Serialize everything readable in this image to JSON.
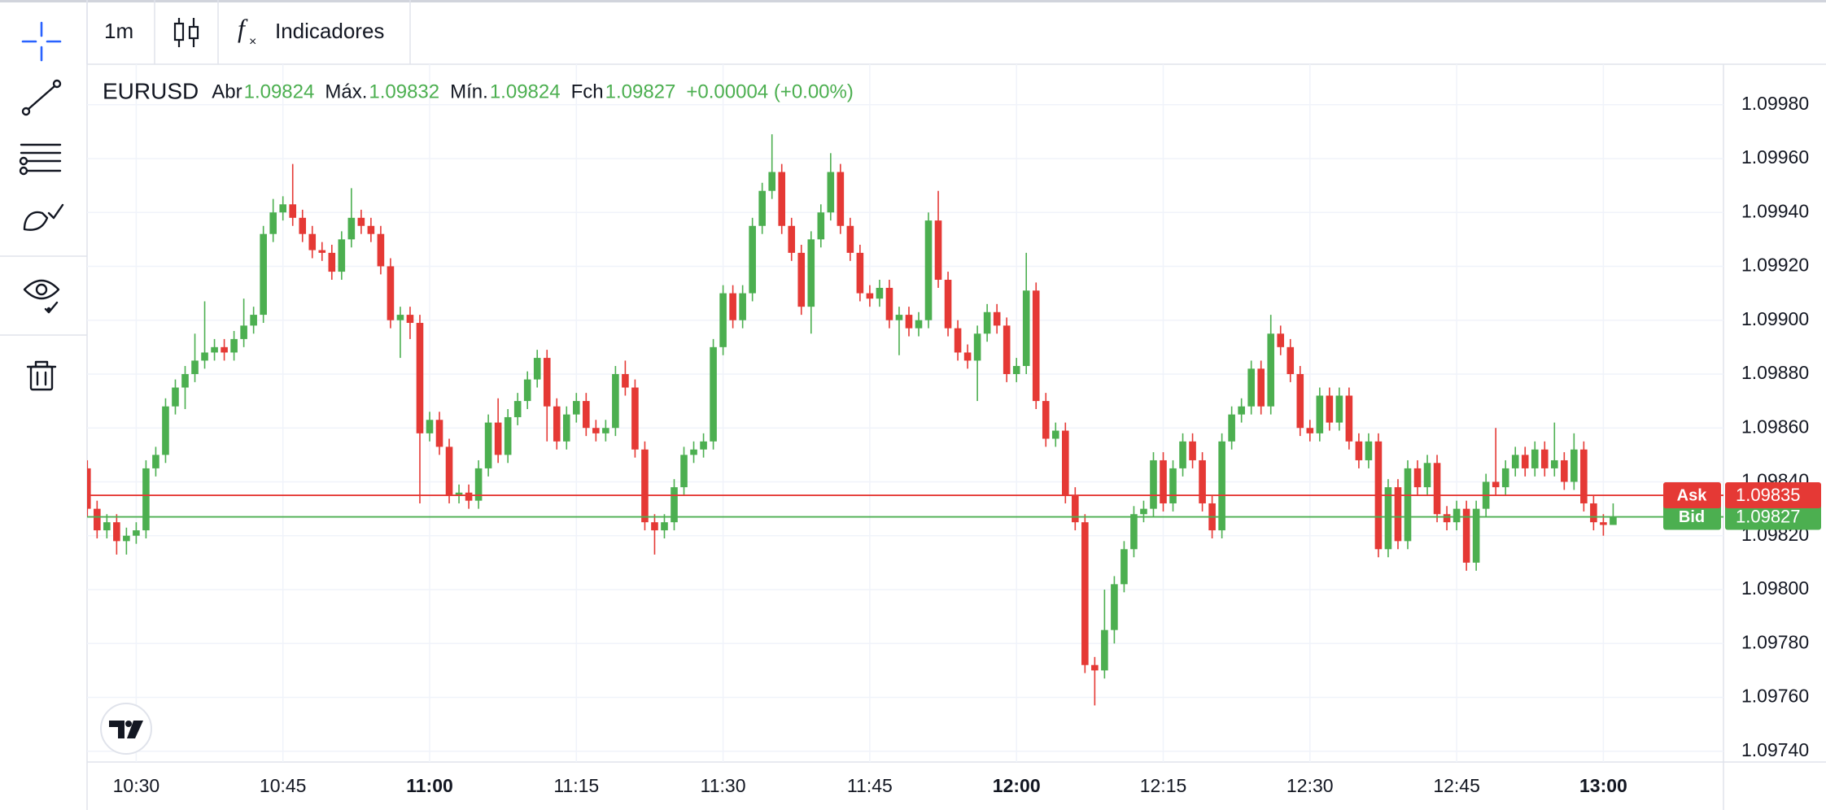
{
  "toolbar": {
    "interval": "1m",
    "indicators": "Indicadores"
  },
  "chart_data": {
    "type": "candlestick",
    "symbol": "EURUSD",
    "ohlc_labels": [
      "Abr",
      "Máx.",
      "Mín.",
      "Fch"
    ],
    "change": "+0.00004 (+0.00%)",
    "up_color": "#4caf50",
    "down_color": "#e53935",
    "grid": true,
    "categories": [
      "10:25",
      "10:26",
      "10:27",
      "10:28",
      "10:29",
      "10:30",
      "10:31",
      "10:32",
      "10:33",
      "10:34",
      "10:35",
      "10:36",
      "10:37",
      "10:38",
      "10:39",
      "10:40",
      "10:41",
      "10:42",
      "10:43",
      "10:44",
      "10:45",
      "10:46",
      "10:47",
      "10:48",
      "10:49",
      "10:50",
      "10:51",
      "10:52",
      "10:53",
      "10:54",
      "10:55",
      "10:56",
      "10:57",
      "10:58",
      "10:59",
      "11:00",
      "11:01",
      "11:02",
      "11:03",
      "11:04",
      "11:05",
      "11:06",
      "11:07",
      "11:08",
      "11:09",
      "11:10",
      "11:11",
      "11:12",
      "11:13",
      "11:14",
      "11:15",
      "11:16",
      "11:17",
      "11:18",
      "11:19",
      "11:20",
      "11:21",
      "11:22",
      "11:23",
      "11:24",
      "11:25",
      "11:26",
      "11:27",
      "11:28",
      "11:29",
      "11:30",
      "11:31",
      "11:32",
      "11:33",
      "11:34",
      "11:35",
      "11:36",
      "11:37",
      "11:38",
      "11:39",
      "11:40",
      "11:41",
      "11:42",
      "11:43",
      "11:44",
      "11:45",
      "11:46",
      "11:47",
      "11:48",
      "11:49",
      "11:50",
      "11:51",
      "11:52",
      "11:53",
      "11:54",
      "11:55",
      "11:56",
      "11:57",
      "11:58",
      "11:59",
      "12:00",
      "12:01",
      "12:02",
      "12:03",
      "12:04",
      "12:05",
      "12:06",
      "12:07",
      "12:08",
      "12:09",
      "12:10",
      "12:11",
      "12:12",
      "12:13",
      "12:14",
      "12:15",
      "12:16",
      "12:17",
      "12:18",
      "12:19",
      "12:20",
      "12:21",
      "12:22",
      "12:23",
      "12:24",
      "12:25",
      "12:26",
      "12:27",
      "12:28",
      "12:29",
      "12:30",
      "12:31",
      "12:32",
      "12:33",
      "12:34",
      "12:35",
      "12:36",
      "12:37",
      "12:38",
      "12:39",
      "12:40",
      "12:41",
      "12:42",
      "12:43",
      "12:44",
      "12:45",
      "12:46",
      "12:47",
      "12:48",
      "12:49",
      "12:50",
      "12:51",
      "12:52",
      "12:53",
      "12:54",
      "12:55",
      "12:56",
      "12:57",
      "12:58",
      "12:59",
      "13:00",
      "13:01"
    ],
    "open": [
      1.09845,
      1.0983,
      1.09822,
      1.09825,
      1.09818,
      1.0982,
      1.09822,
      1.09845,
      1.0985,
      1.09868,
      1.09875,
      1.0988,
      1.09885,
      1.09888,
      1.0989,
      1.09888,
      1.09893,
      1.09898,
      1.09902,
      1.09932,
      1.0994,
      1.09943,
      1.09938,
      1.09932,
      1.09926,
      1.09925,
      1.09918,
      1.0993,
      1.09938,
      1.09935,
      1.09932,
      1.0992,
      1.099,
      1.09902,
      1.09899,
      1.09858,
      1.09863,
      1.09853,
      1.09835,
      1.09836,
      1.09833,
      1.09845,
      1.09862,
      1.0985,
      1.09864,
      1.0987,
      1.09878,
      1.09886,
      1.09868,
      1.09855,
      1.09865,
      1.0987,
      1.0986,
      1.09858,
      1.0986,
      1.0988,
      1.09875,
      1.09852,
      1.09825,
      1.09822,
      1.09825,
      1.09838,
      1.0985,
      1.09852,
      1.09855,
      1.0989,
      1.0991,
      1.099,
      1.0991,
      1.09935,
      1.09948,
      1.09955,
      1.09935,
      1.09925,
      1.09905,
      1.0993,
      1.0994,
      1.09955,
      1.09935,
      1.09925,
      1.0991,
      1.09908,
      1.09912,
      1.099,
      1.09902,
      1.09897,
      1.099,
      1.09937,
      1.09915,
      1.09897,
      1.09888,
      1.09885,
      1.09895,
      1.09903,
      1.09898,
      1.0988,
      1.09883,
      1.09911,
      1.0987,
      1.09856,
      1.09859,
      1.09835,
      1.09825,
      1.09772,
      1.0977,
      1.09785,
      1.09802,
      1.09815,
      1.09828,
      1.0983,
      1.09848,
      1.09832,
      1.09845,
      1.09855,
      1.09848,
      1.09832,
      1.09822,
      1.09855,
      1.09865,
      1.09868,
      1.09882,
      1.09868,
      1.09895,
      1.0989,
      1.0988,
      1.0986,
      1.09858,
      1.09872,
      1.09862,
      1.09872,
      1.09855,
      1.09848,
      1.09855,
      1.09815,
      1.09838,
      1.09818,
      1.09845,
      1.09838,
      1.09847,
      1.09828,
      1.09825,
      1.0983,
      1.0981,
      1.0983,
      1.0984,
      1.09838,
      1.09845,
      1.0985,
      1.09845,
      1.09852,
      1.09845,
      1.09848,
      1.0984,
      1.09852,
      1.09832,
      1.09825,
      1.09824
    ],
    "high": [
      1.09848,
      1.09833,
      1.09828,
      1.09828,
      1.09823,
      1.09825,
      1.09848,
      1.09853,
      1.09871,
      1.09878,
      1.09883,
      1.09895,
      1.09907,
      1.09893,
      1.09893,
      1.09896,
      1.09908,
      1.09905,
      1.09935,
      1.09945,
      1.09946,
      1.09958,
      1.09941,
      1.09935,
      1.09929,
      1.09928,
      1.09933,
      1.09949,
      1.09941,
      1.09938,
      1.09935,
      1.09923,
      1.09905,
      1.09905,
      1.09902,
      1.09866,
      1.09866,
      1.09856,
      1.09839,
      1.09839,
      1.09848,
      1.09865,
      1.09871,
      1.09867,
      1.09873,
      1.09881,
      1.09889,
      1.09889,
      1.09871,
      1.09868,
      1.09873,
      1.09873,
      1.09863,
      1.09863,
      1.09883,
      1.09885,
      1.09878,
      1.09855,
      1.09828,
      1.09828,
      1.09841,
      1.09853,
      1.09855,
      1.09858,
      1.09893,
      1.09913,
      1.09913,
      1.09913,
      1.09938,
      1.09951,
      1.09969,
      1.09958,
      1.09938,
      1.09928,
      1.09933,
      1.09943,
      1.09962,
      1.09958,
      1.09938,
      1.09928,
      1.09913,
      1.09915,
      1.09915,
      1.09905,
      1.09905,
      1.09903,
      1.0994,
      1.09948,
      1.09918,
      1.099,
      1.09891,
      1.09898,
      1.09906,
      1.09906,
      1.09901,
      1.09886,
      1.09925,
      1.09914,
      1.09873,
      1.09862,
      1.09862,
      1.09838,
      1.09828,
      1.09775,
      1.098,
      1.09805,
      1.09818,
      1.09831,
      1.09833,
      1.09851,
      1.09851,
      1.09848,
      1.09858,
      1.09858,
      1.09851,
      1.09835,
      1.09858,
      1.09868,
      1.09871,
      1.09885,
      1.09885,
      1.09902,
      1.09898,
      1.09893,
      1.09883,
      1.09863,
      1.09875,
      1.09875,
      1.09875,
      1.09875,
      1.09858,
      1.09858,
      1.09858,
      1.09841,
      1.09841,
      1.09848,
      1.09848,
      1.0985,
      1.0985,
      1.09831,
      1.09833,
      1.09833,
      1.09833,
      1.09843,
      1.0986,
      1.09848,
      1.09853,
      1.09853,
      1.09855,
      1.09855,
      1.09862,
      1.09851,
      1.09858,
      1.09855,
      1.09835,
      1.09828,
      1.09832
    ],
    "low": [
      1.09827,
      1.09819,
      1.09819,
      1.09813,
      1.09813,
      1.09817,
      1.09819,
      1.09842,
      1.09847,
      1.09865,
      1.09867,
      1.09877,
      1.09882,
      1.09885,
      1.09885,
      1.09885,
      1.0989,
      1.09895,
      1.09899,
      1.09929,
      1.09937,
      1.09935,
      1.09929,
      1.09923,
      1.09922,
      1.09915,
      1.09915,
      1.09927,
      1.09932,
      1.09929,
      1.09917,
      1.09897,
      1.09886,
      1.09893,
      1.09832,
      1.09855,
      1.0985,
      1.09832,
      1.09832,
      1.0983,
      1.0983,
      1.09842,
      1.09847,
      1.09847,
      1.09861,
      1.09867,
      1.09875,
      1.09855,
      1.09852,
      1.09852,
      1.09862,
      1.09857,
      1.09855,
      1.09855,
      1.09857,
      1.09872,
      1.09849,
      1.09822,
      1.09813,
      1.09819,
      1.09822,
      1.09835,
      1.09847,
      1.09849,
      1.09852,
      1.09887,
      1.09897,
      1.09897,
      1.09907,
      1.09932,
      1.09945,
      1.09932,
      1.09922,
      1.09902,
      1.09895,
      1.09927,
      1.09937,
      1.09932,
      1.09922,
      1.09907,
      1.09905,
      1.09905,
      1.09897,
      1.09887,
      1.09894,
      1.09894,
      1.09897,
      1.09912,
      1.09894,
      1.09885,
      1.09882,
      1.0987,
      1.09892,
      1.09895,
      1.09877,
      1.09877,
      1.0988,
      1.09867,
      1.09853,
      1.09853,
      1.09832,
      1.09822,
      1.09769,
      1.09757,
      1.09767,
      1.0978,
      1.09799,
      1.09812,
      1.09825,
      1.09827,
      1.09829,
      1.09829,
      1.09842,
      1.09845,
      1.09829,
      1.09819,
      1.09819,
      1.09852,
      1.09862,
      1.09865,
      1.09865,
      1.09865,
      1.09887,
      1.09877,
      1.09857,
      1.09855,
      1.09855,
      1.09859,
      1.09859,
      1.09852,
      1.09845,
      1.09845,
      1.09812,
      1.09812,
      1.09815,
      1.09815,
      1.09835,
      1.09835,
      1.09825,
      1.09822,
      1.09822,
      1.09807,
      1.09807,
      1.09827,
      1.09835,
      1.09835,
      1.09842,
      1.09842,
      1.09842,
      1.09842,
      1.09842,
      1.09837,
      1.09837,
      1.09829,
      1.09822,
      1.0982,
      1.09824
    ],
    "close": [
      1.0983,
      1.09822,
      1.09825,
      1.09818,
      1.0982,
      1.09822,
      1.09845,
      1.0985,
      1.09868,
      1.09875,
      1.0988,
      1.09885,
      1.09888,
      1.0989,
      1.09888,
      1.09893,
      1.09898,
      1.09902,
      1.09932,
      1.0994,
      1.09943,
      1.09938,
      1.09932,
      1.09926,
      1.09925,
      1.09918,
      1.0993,
      1.09938,
      1.09935,
      1.09932,
      1.0992,
      1.099,
      1.09902,
      1.09899,
      1.09858,
      1.09863,
      1.09853,
      1.09835,
      1.09836,
      1.09833,
      1.09845,
      1.09862,
      1.0985,
      1.09864,
      1.0987,
      1.09878,
      1.09886,
      1.09868,
      1.09855,
      1.09865,
      1.0987,
      1.0986,
      1.09858,
      1.0986,
      1.0988,
      1.09875,
      1.09852,
      1.09825,
      1.09822,
      1.09825,
      1.09838,
      1.0985,
      1.09852,
      1.09855,
      1.0989,
      1.0991,
      1.099,
      1.0991,
      1.09935,
      1.09948,
      1.09955,
      1.09935,
      1.09925,
      1.09905,
      1.0993,
      1.0994,
      1.09955,
      1.09935,
      1.09925,
      1.0991,
      1.09908,
      1.09912,
      1.099,
      1.09902,
      1.09897,
      1.099,
      1.09937,
      1.09915,
      1.09897,
      1.09888,
      1.09885,
      1.09895,
      1.09903,
      1.09898,
      1.0988,
      1.09883,
      1.09911,
      1.0987,
      1.09856,
      1.09859,
      1.09835,
      1.09825,
      1.09772,
      1.0977,
      1.09785,
      1.09802,
      1.09815,
      1.09828,
      1.0983,
      1.09848,
      1.09832,
      1.09845,
      1.09855,
      1.09848,
      1.09832,
      1.09822,
      1.09855,
      1.09865,
      1.09868,
      1.09882,
      1.09868,
      1.09895,
      1.0989,
      1.0988,
      1.0986,
      1.09858,
      1.09872,
      1.09862,
      1.09872,
      1.09855,
      1.09848,
      1.09855,
      1.09815,
      1.09838,
      1.09818,
      1.09845,
      1.09838,
      1.09847,
      1.09828,
      1.09825,
      1.0983,
      1.0981,
      1.0983,
      1.0984,
      1.09838,
      1.09845,
      1.0985,
      1.09845,
      1.09852,
      1.09845,
      1.09848,
      1.0984,
      1.09852,
      1.09832,
      1.09825,
      1.09824,
      1.09827
    ],
    "xticks": [
      "10:30",
      "10:45",
      "11:00",
      "11:15",
      "11:30",
      "11:45",
      "12:00",
      "12:15",
      "12:30",
      "12:45",
      "13:00"
    ],
    "ylim": [
      1.09736,
      1.09995
    ],
    "yticks": [
      {
        "value": 1.0974,
        "label": "1.09740"
      },
      {
        "value": 1.0976,
        "label": "1.09760"
      },
      {
        "value": 1.0978,
        "label": "1.09780"
      },
      {
        "value": 1.098,
        "label": "1.09800"
      },
      {
        "value": 1.0982,
        "label": "1.09820"
      },
      {
        "value": 1.0984,
        "label": "1.09840"
      },
      {
        "value": 1.0986,
        "label": "1.09860"
      },
      {
        "value": 1.0988,
        "label": "1.09880"
      },
      {
        "value": 1.099,
        "label": "1.09900"
      },
      {
        "value": 1.0992,
        "label": "1.09920"
      },
      {
        "value": 1.0994,
        "label": "1.09940"
      },
      {
        "value": 1.0996,
        "label": "1.09960"
      },
      {
        "value": 1.0998,
        "label": "1.09980"
      }
    ],
    "price_lines": [
      {
        "name": "Bid",
        "value": 1.09827,
        "color": "#4caf50"
      },
      {
        "name": "Ask",
        "value": 1.09835,
        "color": "#e53935"
      }
    ]
  }
}
